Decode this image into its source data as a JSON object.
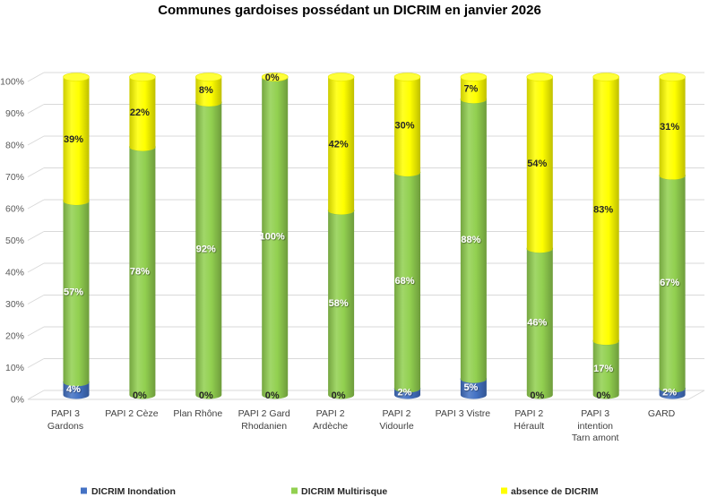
{
  "chart_data": {
    "type": "bar",
    "stacked": true,
    "normalized": true,
    "title": "Communes gardoises possédant un DICRIM en janvier 2026",
    "categories": [
      "PAPI 3\nGardons",
      "PAPI 2 Cèze",
      "Plan Rhône",
      "PAPI 2 Gard\nRhodanien",
      "PAPI 2\nArdèche",
      "PAPI 2\nVidourle",
      "PAPI 3 Vistre",
      "PAPI 2\nHérault",
      "PAPI 3\nintention\nTarn amont",
      "GARD"
    ],
    "ylim": [
      0,
      100
    ],
    "y_ticks": [
      0,
      10,
      20,
      30,
      40,
      50,
      60,
      70,
      80,
      90,
      100
    ],
    "y_tick_labels": [
      "0%",
      "10%",
      "20%",
      "30%",
      "40%",
      "50%",
      "60%",
      "70%",
      "80%",
      "90%",
      "100%"
    ],
    "grid": true,
    "legend": "bottom",
    "zero_label_color": "#262626",
    "series": [
      {
        "name": "DICRIM Inondation",
        "color": "#4472C4",
        "label_color": "#FFFFFF",
        "values": [
          4,
          0,
          0,
          0,
          0,
          2,
          5,
          0,
          0,
          2
        ],
        "labels": [
          "4%",
          "0%",
          "0%",
          "0%",
          "0%",
          "2%",
          "5%",
          "0%",
          "0%",
          "2%"
        ]
      },
      {
        "name": "DICRIM Multirisque",
        "color": "#92D050",
        "label_color": "#FFFFFF",
        "values": [
          57,
          78,
          92,
          100,
          58,
          68,
          88,
          46,
          17,
          67
        ],
        "labels": [
          "57%",
          "78%",
          "92%",
          "100%",
          "58%",
          "68%",
          "88%",
          "46%",
          "17%",
          "67%"
        ]
      },
      {
        "name": "absence de DICRIM",
        "color": "#FFFF00",
        "label_color": "#262626",
        "values": [
          39,
          22,
          8,
          0,
          42,
          30,
          7,
          54,
          83,
          31
        ],
        "labels": [
          "39%",
          "22%",
          "8%",
          "0%",
          "42%",
          "30%",
          "7%",
          "54%",
          "83%",
          "31%"
        ]
      }
    ]
  }
}
